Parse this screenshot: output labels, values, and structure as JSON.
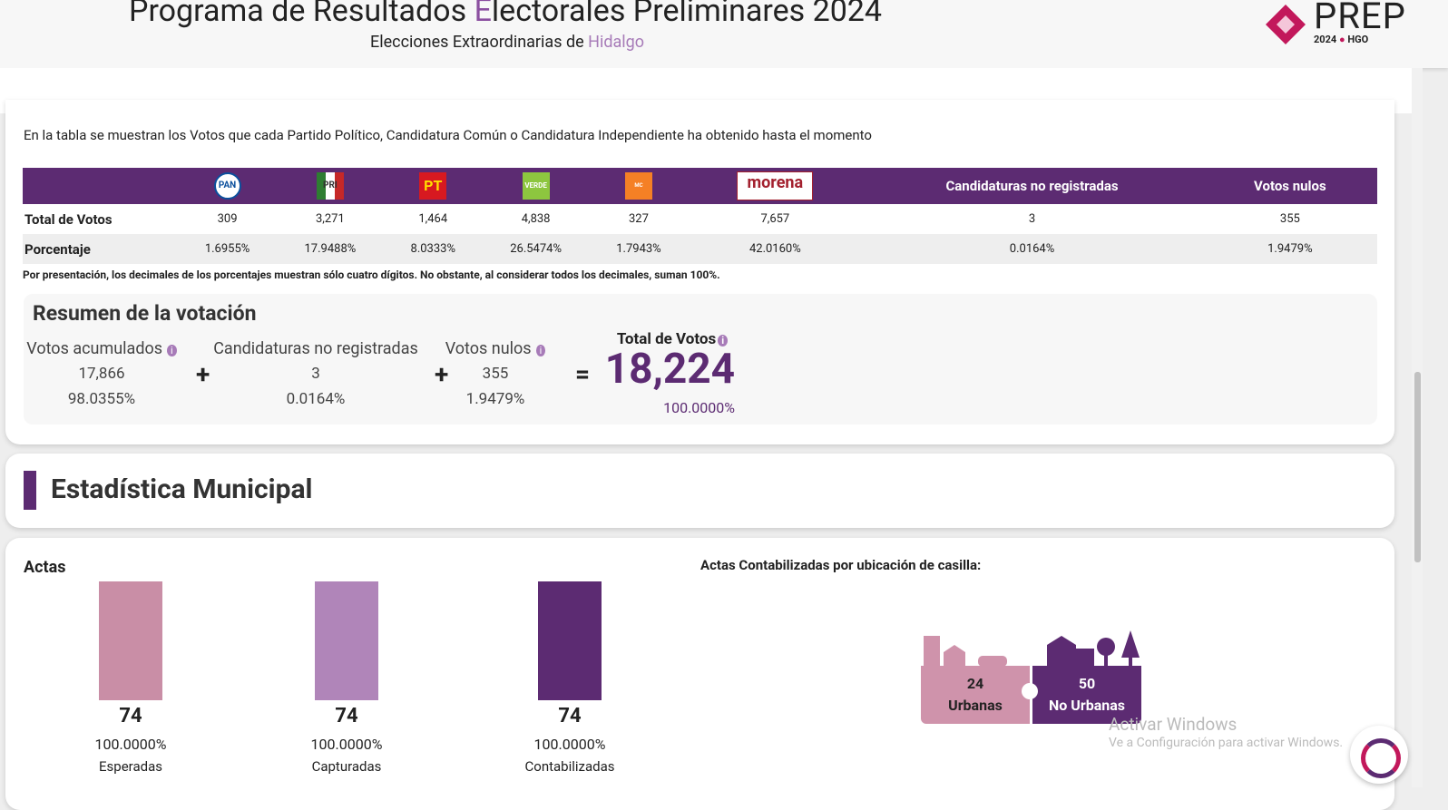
{
  "header": {
    "title_parts": [
      "Programa de Resultados ",
      "E",
      "lectorales Preliminares 2024"
    ],
    "subtitle_parts": [
      "Elecciones Extraordinarias de ",
      "Hidalgo"
    ],
    "logo": {
      "name": "PREP",
      "year": "2024",
      "state": "HGO"
    }
  },
  "votes": {
    "intro": "En la tabla se muestran los Votos que cada Partido Político, Candidatura Común o Candidatura Independiente ha obtenido hasta el momento",
    "table": {
      "columns": [
        "PAN",
        "PRI",
        "PT",
        "VERDE",
        "MC",
        "morena",
        "Candidaturas no registradas",
        "Votos nulos"
      ],
      "rows": [
        {
          "label": "Total de Votos",
          "cells": [
            "309",
            "3,271",
            "1,464",
            "4,838",
            "327",
            "7,657",
            "3",
            "355"
          ]
        },
        {
          "label": "Porcentaje",
          "cells": [
            "1.6955%",
            "17.9488%",
            "8.0333%",
            "26.5474%",
            "1.7943%",
            "42.0160%",
            "0.0164%",
            "1.9479%"
          ]
        }
      ]
    },
    "note": "Por presentación, los decimales de los porcentajes muestran sólo cuatro dígitos. No obstante, al considerar todos los decimales, suman 100%."
  },
  "summary": {
    "title": "Resumen de la votación",
    "items": [
      {
        "label": "Votos acumulados",
        "votes": "17,866",
        "percent": "98.0355%"
      },
      {
        "label": "Candidaturas no registradas",
        "votes": "3",
        "percent": "0.0164%"
      },
      {
        "label": "Votos nulos",
        "votes": "355",
        "percent": "1.9479%"
      }
    ],
    "total": {
      "label": "Total de Votos",
      "votes": "18,224",
      "percent": "100.0000%"
    }
  },
  "municipal": {
    "title": "Estadística Municipal",
    "actas_title": "Actas",
    "actas": [
      {
        "label": "Esperadas",
        "value": 74,
        "percent": "100.0000%",
        "color": "#c98ea6"
      },
      {
        "label": "Capturadas",
        "value": 74,
        "percent": "100.0000%",
        "color": "#b085b9"
      },
      {
        "label": "Contabilizadas",
        "value": 74,
        "percent": "100.0000%",
        "color": "#5c2b72"
      }
    ],
    "location_title": "Actas Contabilizadas por ubicación de casilla:",
    "locations": [
      {
        "value": 24,
        "label": "Urbanas",
        "color": "#cf93ab"
      },
      {
        "value": 50,
        "label": "No Urbanas",
        "color": "#5c2b72"
      }
    ]
  },
  "watermark": {
    "title": "Activar Windows",
    "text": "Ve a Configuración para activar Windows."
  }
}
